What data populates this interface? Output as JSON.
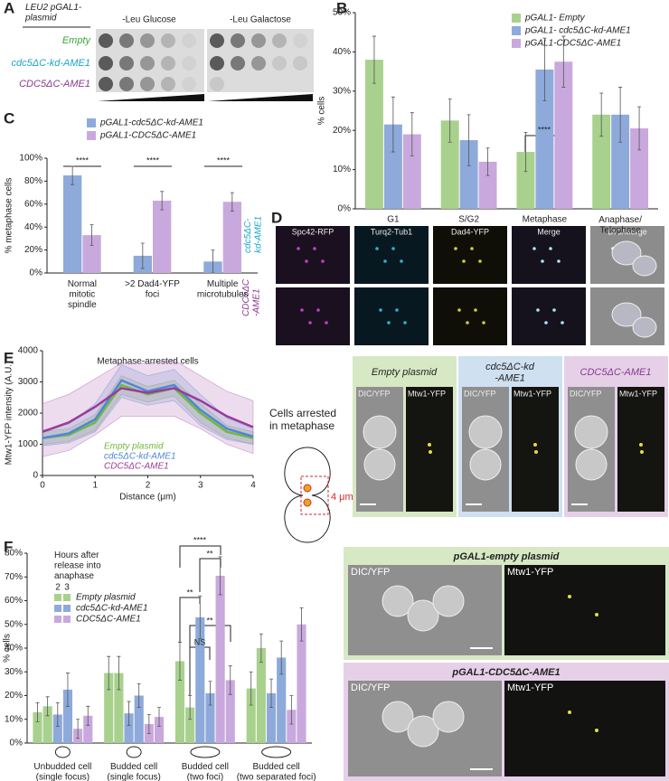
{
  "panel_labels": [
    "A",
    "B",
    "C",
    "D",
    "E",
    "F"
  ],
  "spot_assay": {
    "title": "LEU2 pGAL1-\nplasmid",
    "media": [
      "-Leu Glucose",
      "-Leu Galactose"
    ],
    "strains": [
      "Empty",
      "cdc5ΔC-kd-AME1",
      "CDC5ΔC-AME1"
    ]
  },
  "microscopy_d": {
    "channels": [
      "Spc42-RFP",
      "Turq2-Tub1",
      "Dad4-YFP",
      "Merge",
      "DIC/Merge"
    ],
    "rows": [
      "cdc5ΔC-\nkd-AME1",
      "CDC5ΔC\n-AME1"
    ]
  },
  "metaphase_schematic": {
    "title": "Cells arrested\nin metaphase",
    "scale": "4 μm"
  },
  "metaphase_images": {
    "panels": [
      "Empty plasmid",
      "cdc5ΔC-kd\n-AME1",
      "CDC5ΔC-AME1"
    ],
    "labels": [
      "DIC/YFP",
      "Mtw1-YFP"
    ]
  },
  "anaphase_images": {
    "panels": [
      "pGAL1-empty plasmid",
      "pGAL1-CDC5ΔC-AME1"
    ],
    "labels": [
      "DIC/YFP",
      "Mtw1-YFP"
    ]
  },
  "chart_data": [
    {
      "type": "bar",
      "y_label": "% cells",
      "categories": [
        "G1",
        "S/G2",
        "Metaphase",
        "Anaphase/\nTelophase"
      ],
      "series": [
        {
          "name": "pGAL1- Empty",
          "color": "#a9d18e",
          "values": [
            38,
            22.5,
            14.5,
            24
          ],
          "errors": [
            6,
            5.5,
            5,
            5.5
          ]
        },
        {
          "name": "pGAL1- cdc5ΔC-kd-AME1",
          "color": "#8eaadb",
          "values": [
            21.5,
            17.5,
            35.5,
            24
          ],
          "errors": [
            7,
            6.5,
            8,
            7
          ]
        },
        {
          "name": "pGAL1-CDC5ΔC-AME1",
          "color": "#c9a9dd",
          "values": [
            19,
            12,
            37.5,
            20.5
          ],
          "errors": [
            5.5,
            3.5,
            6.5,
            5.5
          ]
        }
      ],
      "ylim": [
        0,
        50
      ],
      "yticks": [
        {
          "value": 0,
          "label": "0%"
        },
        {
          "value": 10,
          "label": "10%"
        },
        {
          "value": 20,
          "label": "20%"
        },
        {
          "value": 30,
          "label": "30%"
        },
        {
          "value": 40,
          "label": "40%"
        },
        {
          "value": 50,
          "label": "50%"
        }
      ],
      "annotations": [
        "****"
      ]
    },
    {
      "type": "bar",
      "y_label": "% metaphase cells",
      "categories": [
        "Normal\nmitotic\nspindle",
        ">2 Dad4-YFP\nfoci",
        "Multiple\nmicrotubules"
      ],
      "series": [
        {
          "name": "pGAL1-cdc5ΔC-kd-AME1",
          "color": "#8eaadb",
          "values": [
            85,
            15,
            10
          ],
          "errors": [
            8,
            11,
            10
          ]
        },
        {
          "name": "pGAL1-CDC5ΔC-AME1",
          "color": "#c9a9dd",
          "values": [
            33,
            63,
            62
          ],
          "errors": [
            9,
            8,
            8
          ]
        }
      ],
      "ylim": [
        0,
        100
      ],
      "yticks": [
        {
          "value": 0,
          "label": "0%"
        },
        {
          "value": 20,
          "label": "20%"
        },
        {
          "value": 40,
          "label": "40%"
        },
        {
          "value": 60,
          "label": "60%"
        },
        {
          "value": 80,
          "label": "80%"
        },
        {
          "value": 100,
          "label": "100%"
        }
      ],
      "annotations": [
        "****",
        "****",
        "****"
      ]
    },
    {
      "type": "line",
      "title": "Metaphase-arrested cells",
      "x_label": "Distance (μm)",
      "y_label": "Mtw1-YFP intensity (A.U.)",
      "x": [
        0,
        0.5,
        1,
        1.5,
        2,
        2.5,
        3,
        3.5,
        4
      ],
      "series": [
        {
          "name": "Empty plasmid",
          "color": "#72b83e",
          "values": [
            1200,
            1300,
            1700,
            2900,
            2600,
            2800,
            2000,
            1400,
            1200
          ],
          "lower": [
            1000,
            1100,
            1450,
            2600,
            2350,
            2550,
            1700,
            1200,
            1000
          ],
          "upper": [
            1400,
            1500,
            1950,
            3200,
            2850,
            3050,
            2300,
            1600,
            1400
          ]
        },
        {
          "name": "cdc5ΔC-kd-AME1",
          "color": "#4f86d9",
          "values": [
            1200,
            1350,
            1800,
            3050,
            2700,
            2900,
            2100,
            1500,
            1250
          ],
          "lower": [
            950,
            1050,
            1400,
            2500,
            2250,
            2400,
            1600,
            1150,
            1000
          ],
          "upper": [
            1450,
            1650,
            2300,
            3550,
            3200,
            3400,
            2600,
            1850,
            1500
          ]
        },
        {
          "name": "CDC5ΔC-AME1",
          "color": "#9b3b9b",
          "values": [
            1400,
            1700,
            2200,
            2800,
            2650,
            2800,
            2400,
            1900,
            1550
          ],
          "lower": [
            600,
            800,
            1300,
            1900,
            1900,
            1900,
            1500,
            1000,
            700
          ],
          "upper": [
            2300,
            2600,
            3100,
            3600,
            3600,
            3700,
            3200,
            2700,
            2400
          ]
        }
      ],
      "xlim": [
        0,
        4
      ],
      "xticks": [
        0,
        1,
        2,
        3,
        4
      ],
      "ylim": [
        0,
        4000
      ],
      "yticks": [
        0,
        1000,
        2000,
        3000,
        4000
      ]
    },
    {
      "type": "bar",
      "y_label": "% cells",
      "legend_title": "Hours after\nrelease into\nanaphase",
      "hours": [
        2,
        3
      ],
      "categories": [
        "Unbudded cell\n(single focus)",
        "Budded cell\n(single focus)",
        "Budded cell\n(two foci)",
        "Budded cell\n(two separated foci)"
      ],
      "series": [
        {
          "name": "Empty plasmid",
          "color": "#a9d18e",
          "values": [
            [
              13,
              15.5
            ],
            [
              29.5,
              29.5
            ],
            [
              34.5,
              15
            ],
            [
              23,
              40
            ]
          ],
          "errors": [
            [
              4,
              4
            ],
            [
              7,
              7
            ],
            [
              8,
              5
            ],
            [
              7,
              6
            ]
          ]
        },
        {
          "name": "cdc5ΔC-kd-AME1",
          "color": "#8eaadb",
          "values": [
            [
              12,
              22.5
            ],
            [
              12.5,
              20
            ],
            [
              53,
              21
            ],
            [
              21,
              36
            ]
          ],
          "errors": [
            [
              5,
              7
            ],
            [
              5,
              5
            ],
            [
              9,
              5
            ],
            [
              6,
              7
            ]
          ]
        },
        {
          "name": "CDC5ΔC-AME1",
          "color": "#c9a9dd",
          "values": [
            [
              6,
              11.5
            ],
            [
              8,
              11
            ],
            [
              70.5,
              26.5
            ],
            [
              14,
              50
            ]
          ],
          "errors": [
            [
              4,
              4
            ],
            [
              4,
              4
            ],
            [
              8,
              6
            ],
            [
              6,
              7
            ]
          ]
        }
      ],
      "ylim": [
        0,
        80
      ],
      "yticks": [
        {
          "value": 0,
          "label": "0%"
        },
        {
          "value": 10,
          "label": "10%"
        },
        {
          "value": 20,
          "label": "20%"
        },
        {
          "value": 30,
          "label": "30%"
        },
        {
          "value": 40,
          "label": "40%"
        },
        {
          "value": 50,
          "label": "50%"
        },
        {
          "value": 60,
          "label": "60%"
        },
        {
          "value": 70,
          "label": "70%"
        },
        {
          "value": 80,
          "label": "80%"
        }
      ],
      "annotations": [
        "****",
        "**",
        "**",
        "**",
        "NS"
      ]
    }
  ]
}
